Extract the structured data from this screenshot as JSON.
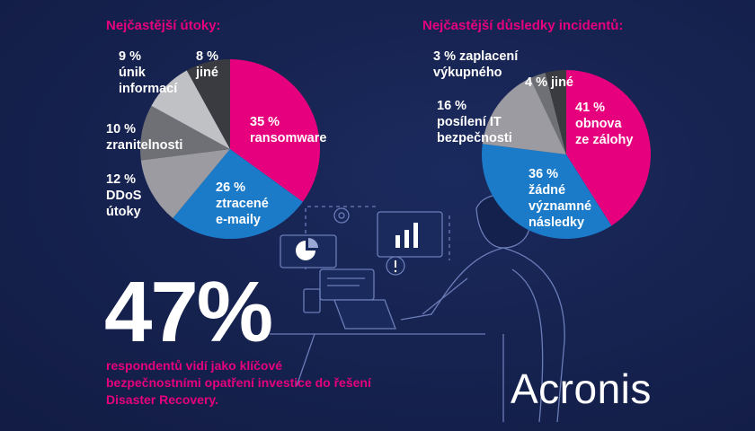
{
  "chart_data": [
    {
      "type": "pie",
      "title": "Nejčastější útoky:",
      "slices": [
        {
          "value": 35,
          "label_lines": [
            "35 %",
            "ransomware"
          ],
          "color": "#e6007e"
        },
        {
          "value": 26,
          "label_lines": [
            "26 %",
            "ztracené",
            "e-maily"
          ],
          "color": "#1b7bc9"
        },
        {
          "value": 12,
          "label_lines": [
            "12 %",
            "DDoS",
            "útoky"
          ],
          "color": "#9b9ba1"
        },
        {
          "value": 10,
          "label_lines": [
            "10 %",
            "zranitelnosti"
          ],
          "color": "#6f7075"
        },
        {
          "value": 9,
          "label_lines": [
            "9 %",
            "únik",
            "informací"
          ],
          "color": "#c0c1c5"
        },
        {
          "value": 8,
          "label_lines": [
            "8 %",
            "jiné"
          ],
          "color": "#3a3b40"
        }
      ]
    },
    {
      "type": "pie",
      "title": "Nejčastější důsledky incidentů:",
      "slices": [
        {
          "value": 41,
          "label_lines": [
            "41 %",
            "obnova",
            "ze zálohy"
          ],
          "color": "#e6007e"
        },
        {
          "value": 36,
          "label_lines": [
            "36 %",
            "žádné",
            "významné",
            "následky"
          ],
          "color": "#1b7bc9"
        },
        {
          "value": 16,
          "label_lines": [
            "16 %",
            "posílení IT",
            "bezpečnosti"
          ],
          "color": "#9b9ba1"
        },
        {
          "value": 3,
          "label_lines": [
            "3 % zaplacení",
            "výkupného"
          ],
          "color": "#6f7075"
        },
        {
          "value": 4,
          "label_lines": [
            "4 % jiné"
          ],
          "color": "#3a3b40"
        }
      ]
    }
  ],
  "highlight": {
    "number": "47%",
    "caption": "respondentů vidí jako klíčové bezpečnostními opatření investice do řešení Disaster Recovery."
  },
  "brand": {
    "logo": "Acronis"
  },
  "colors": {
    "background": "#172554",
    "accent": "#e6007e",
    "blue": "#1b7bc9"
  }
}
